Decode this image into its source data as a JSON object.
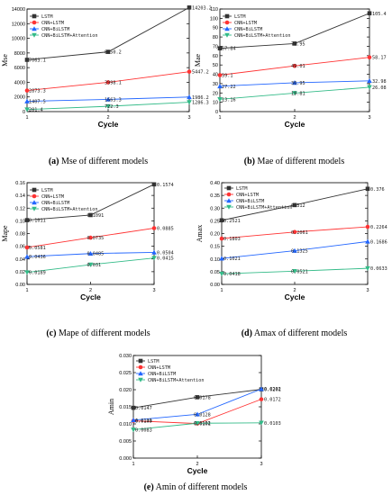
{
  "figure": {
    "captions": [
      {
        "letter": "(a)",
        "text": " Mse of different models"
      },
      {
        "letter": "(b)",
        "text": " Mae of different models"
      },
      {
        "letter": "(c)",
        "text": " Mape of different models"
      },
      {
        "letter": "(d)",
        "text": " Amax of different models"
      },
      {
        "letter": "(e)",
        "text": " Amin of different models"
      }
    ]
  },
  "chart_data": [
    {
      "type": "line",
      "xlabel": "Cycle",
      "ylabel": "Mse",
      "x": [
        1,
        2,
        3
      ],
      "ylim": [
        0,
        14000
      ],
      "yticks": [
        0,
        2000,
        4000,
        6000,
        8000,
        10000,
        12000,
        14000
      ],
      "legend": "top-left",
      "series": [
        {
          "name": "LSTM",
          "color": "#333333",
          "marker": "square",
          "values": [
            7063.1,
            8150.2,
            14203.2
          ],
          "labels": [
            "7063.1",
            "8150.2",
            "14203.2"
          ]
        },
        {
          "name": "CNN+LSTM",
          "color": "#ff3333",
          "marker": "circle",
          "values": [
            2873.3,
            3998.1,
            5447.2
          ],
          "labels": [
            "2873.3",
            "3998.1",
            "5447.2"
          ]
        },
        {
          "name": "CNN+BiLSTM",
          "color": "#2266ff",
          "marker": "triangle",
          "values": [
            1407.5,
            1663.3,
            1986.2
          ],
          "labels": [
            "1407.5",
            "1663.3",
            "1986.2"
          ]
        },
        {
          "name": "CNN+BiLSTM+Attention",
          "color": "#33bb88",
          "marker": "triangle-down",
          "values": [
            281.4,
            722.3,
            1286.3
          ],
          "labels": [
            "281.4",
            "722.3",
            "1286.3"
          ]
        }
      ]
    },
    {
      "type": "line",
      "xlabel": "Cycle",
      "ylabel": "Mae",
      "x": [
        1,
        2,
        3
      ],
      "ylim": [
        0,
        110
      ],
      "yticks": [
        0,
        10,
        20,
        30,
        40,
        50,
        60,
        70,
        80,
        90,
        100,
        110
      ],
      "legend": "top-left",
      "series": [
        {
          "name": "LSTM",
          "color": "#333333",
          "marker": "square",
          "values": [
            67.84,
            72.95,
            105.4
          ],
          "labels": [
            "67.84",
            "72.95",
            "105.4"
          ]
        },
        {
          "name": "CNN+LSTM",
          "color": "#ff3333",
          "marker": "circle",
          "values": [
            39.1,
            49.01,
            58.17
          ],
          "labels": [
            "39.1",
            "49.01",
            "58.17"
          ]
        },
        {
          "name": "CNN+BiLSTM",
          "color": "#2266ff",
          "marker": "triangle",
          "values": [
            27.22,
            30.95,
            32.98
          ],
          "labels": [
            "27.22",
            "30.95",
            "32.98"
          ]
        },
        {
          "name": "CNN+BiLSTM+Attention",
          "color": "#33bb88",
          "marker": "triangle-down",
          "values": [
            13.16,
            19.81,
            26.08
          ],
          "labels": [
            "13.16",
            "19.81",
            "26.08"
          ]
        }
      ]
    },
    {
      "type": "line",
      "xlabel": "Cycle",
      "ylabel": "Mape",
      "x": [
        1,
        2,
        3
      ],
      "ylim": [
        0,
        0.16
      ],
      "yticks": [
        0,
        0.02,
        0.04,
        0.06,
        0.08,
        0.1,
        0.12,
        0.14,
        0.16
      ],
      "ytick_labels": [
        "0.00",
        "0.02",
        "0.04",
        "0.06",
        "0.08",
        "0.10",
        "0.12",
        "0.14",
        "0.16"
      ],
      "legend": "top-left",
      "series": [
        {
          "name": "LSTM",
          "color": "#333333",
          "marker": "square",
          "values": [
            0.1011,
            0.1091,
            0.1574
          ],
          "labels": [
            "0.1011",
            "0.1091",
            "0.1574"
          ]
        },
        {
          "name": "CNN+LSTM",
          "color": "#ff3333",
          "marker": "circle",
          "values": [
            0.0581,
            0.0735,
            0.0885
          ],
          "labels": [
            "0.0581",
            "0.0735",
            "0.0885"
          ]
        },
        {
          "name": "CNN+BiLSTM",
          "color": "#2266ff",
          "marker": "triangle",
          "values": [
            0.0436,
            0.0485,
            0.0504
          ],
          "labels": [
            "0.0436",
            "0.0485",
            "0.0504"
          ]
        },
        {
          "name": "CNN+BiLSTM+Attention",
          "color": "#33bb88",
          "marker": "triangle-down",
          "values": [
            0.0189,
            0.031,
            0.0415
          ],
          "labels": [
            "0.0189",
            "0.031",
            "0.0415"
          ]
        }
      ]
    },
    {
      "type": "line",
      "xlabel": "Cycle",
      "ylabel": "Amax",
      "x": [
        1,
        2,
        3
      ],
      "ylim": [
        0,
        0.4
      ],
      "yticks": [
        0,
        0.05,
        0.1,
        0.15,
        0.2,
        0.25,
        0.3,
        0.35,
        0.4
      ],
      "ytick_labels": [
        "0.00",
        "0.05",
        "0.10",
        "0.15",
        "0.20",
        "0.25",
        "0.30",
        "0.35",
        "0.40"
      ],
      "legend": "top-left",
      "series": [
        {
          "name": "LSTM",
          "color": "#333333",
          "marker": "square",
          "values": [
            0.2521,
            0.312,
            0.376
          ],
          "labels": [
            "0.2521",
            "0.312",
            "0.376"
          ]
        },
        {
          "name": "CNN+LSTM",
          "color": "#ff3333",
          "marker": "circle",
          "values": [
            0.1803,
            0.2061,
            0.2264
          ],
          "labels": [
            "0.1803",
            "0.2061",
            "0.2264"
          ]
        },
        {
          "name": "CNN+BiLSTM",
          "color": "#2266ff",
          "marker": "triangle",
          "values": [
            0.1021,
            0.1325,
            0.1686
          ],
          "labels": [
            "0.1021",
            "0.1325",
            "0.1686"
          ]
        },
        {
          "name": "CNN+BiLSTM+Attention",
          "color": "#33bb88",
          "marker": "triangle-down",
          "values": [
            0.0418,
            0.0521,
            0.0633
          ],
          "labels": [
            "0.0418",
            "0.0521",
            "0.0633"
          ]
        }
      ]
    },
    {
      "type": "line",
      "xlabel": "Cycle",
      "ylabel": "Amin",
      "x": [
        1,
        2,
        3
      ],
      "ylim": [
        0,
        0.03
      ],
      "yticks": [
        0,
        0.005,
        0.01,
        0.015,
        0.02,
        0.025,
        0.03
      ],
      "ytick_labels": [
        "0.000",
        "0.005",
        "0.010",
        "0.015",
        "0.020",
        "0.025",
        "0.030"
      ],
      "legend": "top-left",
      "series": [
        {
          "name": "LSTM",
          "color": "#333333",
          "marker": "square",
          "values": [
            0.0147,
            0.0178,
            0.0201
          ],
          "labels": [
            "0.0147",
            "0.0178",
            "0.0201"
          ]
        },
        {
          "name": "CNN+LSTM",
          "color": "#ff3333",
          "marker": "circle",
          "values": [
            0.0109,
            0.0101,
            0.0172
          ],
          "labels": [
            "0.0109",
            "0.0101",
            "0.0172"
          ]
        },
        {
          "name": "CNN+BiLSTM",
          "color": "#2266ff",
          "marker": "triangle",
          "values": [
            0.0111,
            0.0128,
            0.0202
          ],
          "labels": [
            "0.0111",
            "0.0128",
            "0.0202"
          ]
        },
        {
          "name": "CNN+BiLSTM+Attention",
          "color": "#33bb88",
          "marker": "triangle-down",
          "values": [
            0.0083,
            0.0102,
            0.0103
          ],
          "labels": [
            "0.0083",
            "0.0102",
            "0.0103"
          ]
        }
      ]
    }
  ]
}
